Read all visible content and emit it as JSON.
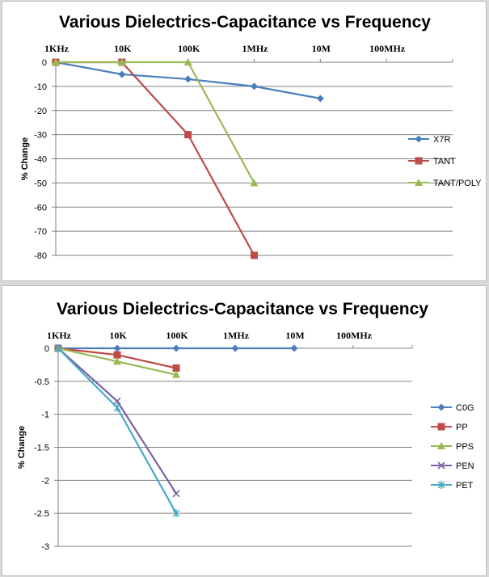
{
  "chart_data": [
    {
      "type": "line",
      "title": "Various Dielectrics-Capacitance vs Frequency",
      "ylabel": "% Change",
      "x_ticks": [
        "1KHz",
        "10K",
        "100K",
        "1MHz",
        "10M",
        "100MHz"
      ],
      "x_axis_position": "top",
      "x_scale": "log",
      "yticks": [
        0,
        -10,
        -20,
        -30,
        -40,
        -50,
        -60,
        -70,
        -80
      ],
      "ylim": [
        -80,
        0
      ],
      "grid": true,
      "legend_position": "right",
      "series": [
        {
          "name": "X7R",
          "color": "#4a7ebb",
          "marker": "diamond",
          "values": [
            0,
            -5,
            -7,
            -10,
            -15
          ]
        },
        {
          "name": "TANT",
          "color": "#be4b48",
          "marker": "square",
          "values": [
            0,
            0,
            -30,
            -80
          ]
        },
        {
          "name": "TANT/POLY",
          "color": "#98b954",
          "marker": "triangle",
          "values": [
            0,
            0,
            0,
            -50
          ]
        }
      ]
    },
    {
      "type": "line",
      "title": "Various Dielectrics-Capacitance vs Frequency",
      "ylabel": "% Change",
      "x_ticks": [
        "1KHz",
        "10K",
        "100K",
        "1MHz",
        "10M",
        "100MHz"
      ],
      "x_axis_position": "top",
      "x_scale": "log",
      "yticks": [
        "0",
        "-0.5",
        "-1",
        "-1.5",
        "-2",
        "-2.5",
        "-3"
      ],
      "ylim": [
        -3,
        0
      ],
      "grid": true,
      "legend_position": "right",
      "series": [
        {
          "name": "C0G",
          "color": "#4a7ebb",
          "marker": "diamond",
          "values": [
            0,
            0,
            0,
            0,
            0
          ]
        },
        {
          "name": "PP",
          "color": "#be4b48",
          "marker": "square",
          "values": [
            0,
            -0.1,
            -0.3
          ]
        },
        {
          "name": "PPS",
          "color": "#98b954",
          "marker": "triangle",
          "values": [
            0,
            -0.2,
            -0.4
          ]
        },
        {
          "name": "PEN",
          "color": "#7d60a0",
          "marker": "x",
          "values": [
            0,
            -0.8,
            -2.2
          ]
        },
        {
          "name": "PET",
          "color": "#46aac5",
          "marker": "star",
          "values": [
            0,
            -0.9,
            -2.5
          ]
        }
      ]
    }
  ]
}
